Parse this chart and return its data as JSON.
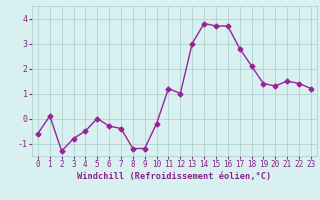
{
  "x": [
    0,
    1,
    2,
    3,
    4,
    5,
    6,
    7,
    8,
    9,
    10,
    11,
    12,
    13,
    14,
    15,
    16,
    17,
    18,
    19,
    20,
    21,
    22,
    23
  ],
  "y": [
    -0.6,
    0.1,
    -1.3,
    -0.8,
    -0.5,
    0.0,
    -0.3,
    -0.4,
    -1.2,
    -1.2,
    -0.2,
    1.2,
    1.0,
    3.0,
    3.8,
    3.7,
    3.7,
    2.8,
    2.1,
    1.4,
    1.3,
    1.5,
    1.4,
    1.2
  ],
  "line_color": "#992299",
  "marker": "D",
  "marker_size": 2.5,
  "background_color": "#d8f0f0",
  "grid_color": "#aacccc",
  "xlabel": "Windchill (Refroidissement éolien,°C)",
  "xlabel_color": "#882288",
  "tick_color": "#882288",
  "ylim": [
    -1.5,
    4.5
  ],
  "xlim": [
    -0.5,
    23.5
  ],
  "yticks": [
    -1,
    0,
    1,
    2,
    3,
    4
  ],
  "xticks": [
    0,
    1,
    2,
    3,
    4,
    5,
    6,
    7,
    8,
    9,
    10,
    11,
    12,
    13,
    14,
    15,
    16,
    17,
    18,
    19,
    20,
    21,
    22,
    23
  ],
  "xtick_labels": [
    "0",
    "1",
    "2",
    "3",
    "4",
    "5",
    "6",
    "7",
    "8",
    "9",
    "10",
    "11",
    "12",
    "13",
    "14",
    "15",
    "16",
    "17",
    "18",
    "19",
    "20",
    "21",
    "22",
    "23"
  ],
  "linewidth": 1.0,
  "tick_fontsize": 5.5,
  "ytick_fontsize": 6.0,
  "xlabel_fontsize": 6.2
}
